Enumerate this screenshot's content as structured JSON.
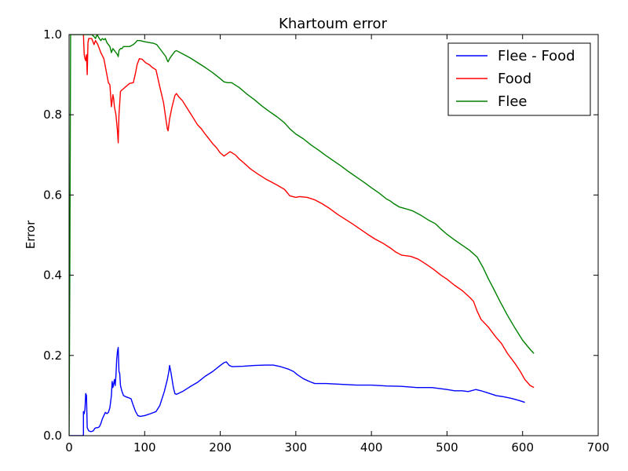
{
  "chart_data": {
    "type": "line",
    "title": "Khartoum error",
    "xlabel": "",
    "ylabel": "Error",
    "xlim": [
      0,
      700
    ],
    "ylim": [
      0.0,
      1.0
    ],
    "grid": false,
    "legend_position": "top-right",
    "x_ticks": [
      "0",
      "100",
      "200",
      "300",
      "400",
      "500",
      "600",
      "700"
    ],
    "y_ticks": [
      "0.0",
      "0.2",
      "0.4",
      "0.6",
      "0.8",
      "1.0"
    ],
    "series": [
      {
        "name": "Flee - Food",
        "color": "#0000ff",
        "points": [
          [
            0,
            0
          ],
          [
            19,
            0
          ],
          [
            19,
            0.06
          ],
          [
            20,
            0.055
          ],
          [
            21,
            0.065
          ],
          [
            22,
            0.105
          ],
          [
            23,
            0.1
          ],
          [
            24,
            0.02
          ],
          [
            26,
            0.012
          ],
          [
            29,
            0.01
          ],
          [
            32,
            0.012
          ],
          [
            34,
            0.018
          ],
          [
            36,
            0.02
          ],
          [
            38,
            0.02
          ],
          [
            40,
            0.022
          ],
          [
            42,
            0.03
          ],
          [
            44,
            0.042
          ],
          [
            46,
            0.05
          ],
          [
            48,
            0.058
          ],
          [
            50,
            0.055
          ],
          [
            52,
            0.058
          ],
          [
            54,
            0.07
          ],
          [
            56,
            0.1
          ],
          [
            57,
            0.135
          ],
          [
            58,
            0.12
          ],
          [
            59,
            0.13
          ],
          [
            60,
            0.14
          ],
          [
            61,
            0.125
          ],
          [
            62,
            0.15
          ],
          [
            63,
            0.19
          ],
          [
            64,
            0.21
          ],
          [
            65,
            0.22
          ],
          [
            66,
            0.16
          ],
          [
            67,
            0.155
          ],
          [
            68,
            0.125
          ],
          [
            70,
            0.11
          ],
          [
            72,
            0.1
          ],
          [
            75,
            0.097
          ],
          [
            78,
            0.095
          ],
          [
            82,
            0.092
          ],
          [
            85,
            0.075
          ],
          [
            88,
            0.06
          ],
          [
            91,
            0.05
          ],
          [
            94,
            0.048
          ],
          [
            100,
            0.05
          ],
          [
            108,
            0.055
          ],
          [
            115,
            0.06
          ],
          [
            120,
            0.075
          ],
          [
            126,
            0.11
          ],
          [
            130,
            0.14
          ],
          [
            132,
            0.16
          ],
          [
            133,
            0.175
          ],
          [
            135,
            0.155
          ],
          [
            138,
            0.12
          ],
          [
            140,
            0.105
          ],
          [
            142,
            0.103
          ],
          [
            150,
            0.11
          ],
          [
            160,
            0.122
          ],
          [
            170,
            0.133
          ],
          [
            180,
            0.148
          ],
          [
            190,
            0.16
          ],
          [
            200,
            0.175
          ],
          [
            205,
            0.182
          ],
          [
            208,
            0.184
          ],
          [
            212,
            0.175
          ],
          [
            216,
            0.172
          ],
          [
            230,
            0.173
          ],
          [
            245,
            0.175
          ],
          [
            260,
            0.176
          ],
          [
            270,
            0.176
          ],
          [
            280,
            0.172
          ],
          [
            290,
            0.166
          ],
          [
            297,
            0.16
          ],
          [
            302,
            0.152
          ],
          [
            310,
            0.142
          ],
          [
            318,
            0.135
          ],
          [
            325,
            0.13
          ],
          [
            340,
            0.13
          ],
          [
            360,
            0.128
          ],
          [
            380,
            0.126
          ],
          [
            400,
            0.126
          ],
          [
            420,
            0.124
          ],
          [
            440,
            0.123
          ],
          [
            460,
            0.12
          ],
          [
            480,
            0.12
          ],
          [
            500,
            0.115
          ],
          [
            510,
            0.112
          ],
          [
            520,
            0.112
          ],
          [
            528,
            0.11
          ],
          [
            538,
            0.115
          ],
          [
            545,
            0.112
          ],
          [
            555,
            0.106
          ],
          [
            565,
            0.1
          ],
          [
            575,
            0.097
          ],
          [
            585,
            0.093
          ],
          [
            595,
            0.088
          ],
          [
            603,
            0.083
          ]
        ]
      },
      {
        "name": "Food",
        "color": "#ff0000",
        "points": [
          [
            19,
            1.0
          ],
          [
            20,
            0.95
          ],
          [
            21,
            0.94
          ],
          [
            22,
            0.935
          ],
          [
            23,
            0.95
          ],
          [
            24,
            0.9
          ],
          [
            25,
            0.98
          ],
          [
            26,
            0.99
          ],
          [
            30,
            0.99
          ],
          [
            33,
            0.975
          ],
          [
            35,
            0.985
          ],
          [
            38,
            0.975
          ],
          [
            42,
            0.955
          ],
          [
            46,
            0.94
          ],
          [
            50,
            0.9
          ],
          [
            52,
            0.88
          ],
          [
            54,
            0.875
          ],
          [
            56,
            0.82
          ],
          [
            58,
            0.85
          ],
          [
            59,
            0.84
          ],
          [
            60,
            0.82
          ],
          [
            62,
            0.8
          ],
          [
            64,
            0.76
          ],
          [
            65,
            0.73
          ],
          [
            66,
            0.8
          ],
          [
            68,
            0.858
          ],
          [
            70,
            0.862
          ],
          [
            72,
            0.865
          ],
          [
            75,
            0.87
          ],
          [
            80,
            0.878
          ],
          [
            85,
            0.88
          ],
          [
            88,
            0.905
          ],
          [
            90,
            0.925
          ],
          [
            93,
            0.94
          ],
          [
            97,
            0.938
          ],
          [
            101,
            0.93
          ],
          [
            106,
            0.925
          ],
          [
            110,
            0.918
          ],
          [
            115,
            0.912
          ],
          [
            120,
            0.87
          ],
          [
            125,
            0.83
          ],
          [
            128,
            0.79
          ],
          [
            130,
            0.765
          ],
          [
            131,
            0.76
          ],
          [
            133,
            0.79
          ],
          [
            136,
            0.818
          ],
          [
            140,
            0.848
          ],
          [
            142,
            0.853
          ],
          [
            145,
            0.845
          ],
          [
            150,
            0.835
          ],
          [
            155,
            0.82
          ],
          [
            160,
            0.805
          ],
          [
            165,
            0.79
          ],
          [
            170,
            0.775
          ],
          [
            175,
            0.765
          ],
          [
            180,
            0.752
          ],
          [
            190,
            0.728
          ],
          [
            195,
            0.718
          ],
          [
            200,
            0.705
          ],
          [
            205,
            0.697
          ],
          [
            210,
            0.704
          ],
          [
            213,
            0.708
          ],
          [
            220,
            0.7
          ],
          [
            225,
            0.69
          ],
          [
            230,
            0.682
          ],
          [
            240,
            0.665
          ],
          [
            250,
            0.652
          ],
          [
            260,
            0.64
          ],
          [
            265,
            0.635
          ],
          [
            275,
            0.625
          ],
          [
            285,
            0.614
          ],
          [
            292,
            0.598
          ],
          [
            300,
            0.594
          ],
          [
            305,
            0.596
          ],
          [
            315,
            0.594
          ],
          [
            325,
            0.588
          ],
          [
            335,
            0.578
          ],
          [
            345,
            0.566
          ],
          [
            355,
            0.552
          ],
          [
            365,
            0.54
          ],
          [
            375,
            0.528
          ],
          [
            385,
            0.515
          ],
          [
            395,
            0.502
          ],
          [
            405,
            0.49
          ],
          [
            415,
            0.48
          ],
          [
            425,
            0.468
          ],
          [
            432,
            0.458
          ],
          [
            440,
            0.45
          ],
          [
            452,
            0.447
          ],
          [
            462,
            0.44
          ],
          [
            472,
            0.428
          ],
          [
            482,
            0.415
          ],
          [
            492,
            0.4
          ],
          [
            500,
            0.39
          ],
          [
            510,
            0.375
          ],
          [
            520,
            0.362
          ],
          [
            530,
            0.345
          ],
          [
            535,
            0.335
          ],
          [
            540,
            0.31
          ],
          [
            545,
            0.29
          ],
          [
            555,
            0.27
          ],
          [
            565,
            0.245
          ],
          [
            572,
            0.23
          ],
          [
            580,
            0.205
          ],
          [
            590,
            0.18
          ],
          [
            597,
            0.16
          ],
          [
            603,
            0.14
          ],
          [
            610,
            0.125
          ],
          [
            615,
            0.12
          ]
        ]
      },
      {
        "name": "Flee",
        "color": "#008000",
        "points": [
          [
            0,
            0.0
          ],
          [
            1,
            0.4
          ],
          [
            2,
            1.0
          ],
          [
            30,
            1.0
          ],
          [
            33,
            0.995
          ],
          [
            35,
            0.99
          ],
          [
            37,
            1.0
          ],
          [
            40,
            0.99
          ],
          [
            42,
            0.985
          ],
          [
            44,
            0.99
          ],
          [
            46,
            0.987
          ],
          [
            48,
            0.99
          ],
          [
            50,
            0.98
          ],
          [
            52,
            0.975
          ],
          [
            54,
            0.97
          ],
          [
            56,
            0.955
          ],
          [
            58,
            0.965
          ],
          [
            60,
            0.96
          ],
          [
            62,
            0.955
          ],
          [
            64,
            0.95
          ],
          [
            65,
            0.945
          ],
          [
            66,
            0.96
          ],
          [
            68,
            0.965
          ],
          [
            70,
            0.965
          ],
          [
            72,
            0.97
          ],
          [
            75,
            0.97
          ],
          [
            80,
            0.97
          ],
          [
            85,
            0.975
          ],
          [
            88,
            0.98
          ],
          [
            90,
            0.985
          ],
          [
            94,
            0.985
          ],
          [
            100,
            0.982
          ],
          [
            106,
            0.98
          ],
          [
            112,
            0.978
          ],
          [
            116,
            0.975
          ],
          [
            120,
            0.965
          ],
          [
            124,
            0.955
          ],
          [
            128,
            0.945
          ],
          [
            130,
            0.935
          ],
          [
            131,
            0.932
          ],
          [
            133,
            0.94
          ],
          [
            136,
            0.948
          ],
          [
            140,
            0.958
          ],
          [
            142,
            0.96
          ],
          [
            150,
            0.952
          ],
          [
            160,
            0.942
          ],
          [
            170,
            0.93
          ],
          [
            180,
            0.918
          ],
          [
            190,
            0.905
          ],
          [
            200,
            0.89
          ],
          [
            205,
            0.882
          ],
          [
            210,
            0.88
          ],
          [
            215,
            0.88
          ],
          [
            225,
            0.868
          ],
          [
            235,
            0.852
          ],
          [
            245,
            0.838
          ],
          [
            255,
            0.822
          ],
          [
            265,
            0.808
          ],
          [
            275,
            0.795
          ],
          [
            285,
            0.78
          ],
          [
            292,
            0.765
          ],
          [
            300,
            0.752
          ],
          [
            310,
            0.74
          ],
          [
            320,
            0.725
          ],
          [
            330,
            0.712
          ],
          [
            340,
            0.698
          ],
          [
            350,
            0.685
          ],
          [
            360,
            0.672
          ],
          [
            370,
            0.658
          ],
          [
            380,
            0.645
          ],
          [
            390,
            0.632
          ],
          [
            400,
            0.618
          ],
          [
            410,
            0.605
          ],
          [
            420,
            0.59
          ],
          [
            425,
            0.585
          ],
          [
            430,
            0.578
          ],
          [
            437,
            0.57
          ],
          [
            445,
            0.566
          ],
          [
            455,
            0.56
          ],
          [
            465,
            0.55
          ],
          [
            475,
            0.538
          ],
          [
            485,
            0.528
          ],
          [
            492,
            0.515
          ],
          [
            500,
            0.502
          ],
          [
            510,
            0.488
          ],
          [
            520,
            0.475
          ],
          [
            530,
            0.462
          ],
          [
            540,
            0.445
          ],
          [
            548,
            0.418
          ],
          [
            555,
            0.39
          ],
          [
            562,
            0.365
          ],
          [
            570,
            0.335
          ],
          [
            580,
            0.3
          ],
          [
            590,
            0.268
          ],
          [
            600,
            0.238
          ],
          [
            610,
            0.215
          ],
          [
            615,
            0.205
          ]
        ]
      }
    ]
  }
}
